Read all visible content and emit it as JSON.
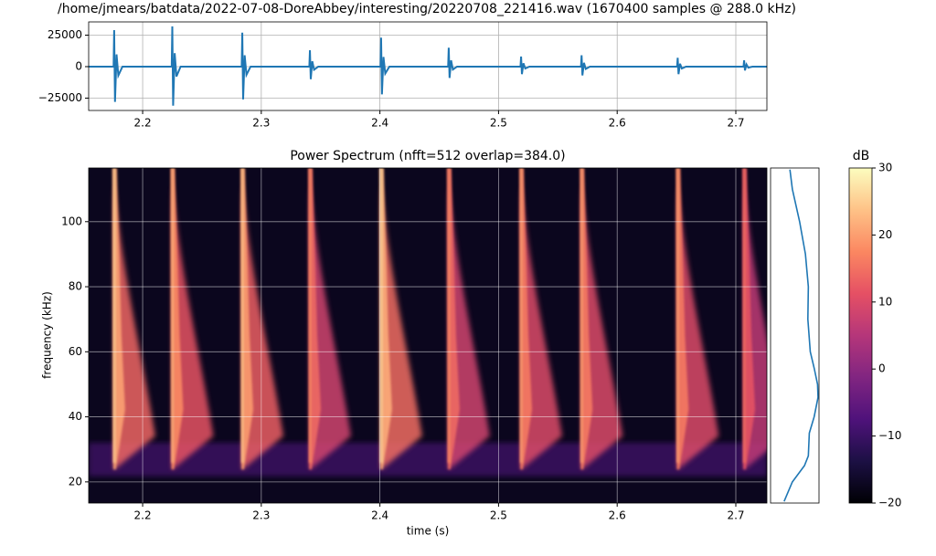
{
  "chart_data": [
    {
      "type": "waveform",
      "title": "/home/jmears/batdata/2022-07-08-DoreAbbey/interesting/20220708_221416.wav (1670400 samples @ 288.0 kHz)",
      "color": "#1f77b4",
      "grid": true,
      "xlim": [
        2.1545,
        2.7262
      ],
      "xticks": [
        2.2,
        2.3,
        2.4,
        2.5,
        2.6,
        2.7
      ],
      "ylim": [
        -34800,
        35500
      ],
      "yticks": [
        {
          "value": -25000,
          "label": "−25000"
        },
        0,
        25000
      ],
      "x": [
        2.1545,
        2.1755,
        2.176,
        2.1767,
        2.178,
        2.1795,
        2.183,
        2.2245,
        2.225,
        2.2257,
        2.227,
        2.2285,
        2.232,
        2.2835,
        2.284,
        2.2847,
        2.286,
        2.2875,
        2.291,
        2.3405,
        2.341,
        2.3417,
        2.343,
        2.3445,
        2.348,
        2.4005,
        2.401,
        2.4017,
        2.403,
        2.4045,
        2.408,
        2.4575,
        2.458,
        2.4587,
        2.46,
        2.4615,
        2.465,
        2.5185,
        2.519,
        2.5197,
        2.521,
        2.5225,
        2.526,
        2.5695,
        2.57,
        2.5707,
        2.572,
        2.5735,
        2.577,
        2.6505,
        2.651,
        2.6517,
        2.653,
        2.6545,
        2.658,
        2.7065,
        2.707,
        2.7077,
        2.709,
        2.7105,
        2.714,
        2.7262
      ],
      "values": [
        0,
        0,
        29000,
        -28000,
        9700,
        -7000,
        0,
        0,
        32000,
        -31000,
        10700,
        -7800,
        0,
        0,
        27000,
        -26000,
        9000,
        -6500,
        0,
        0,
        13000,
        -10000,
        4300,
        -2500,
        0,
        0,
        23000,
        -22000,
        7700,
        -5500,
        0,
        0,
        15000,
        -9000,
        5000,
        -2300,
        0,
        0,
        8000,
        -6000,
        2700,
        -1500,
        0,
        0,
        9000,
        -7000,
        3000,
        -1800,
        0,
        0,
        7000,
        -6000,
        2300,
        -1500,
        0,
        0,
        5000,
        -3000,
        1700,
        -800,
        0,
        0
      ]
    },
    {
      "type": "spectrogram",
      "title": "Power Spectrum (nfft=512 overlap=384.0)",
      "xlabel": "time (s)",
      "ylabel": "frequency (kHz)",
      "grid": true,
      "xlim": [
        2.1545,
        2.7262
      ],
      "xticks": [
        2.2,
        2.3,
        2.4,
        2.5,
        2.6,
        2.7
      ],
      "ylim": [
        13.5,
        116.5
      ],
      "yticks": [
        20,
        40,
        60,
        80,
        100
      ],
      "x": [
        2.176,
        2.225,
        2.284,
        2.341,
        2.401,
        2.458,
        2.519,
        2.57,
        2.651,
        2.707
      ],
      "values": [
        25,
        22,
        24,
        18,
        26,
        18,
        20,
        20,
        20,
        15
      ]
    },
    {
      "type": "profile",
      "color": "#1f77b4",
      "xlim": [
        0,
        1
      ],
      "ylim": [
        13.5,
        116.5
      ],
      "y": [
        14,
        20,
        25,
        28,
        35,
        40,
        46,
        50,
        55,
        60,
        70,
        80,
        90,
        100,
        110,
        116
      ],
      "values": [
        0.28,
        0.45,
        0.7,
        0.78,
        0.8,
        0.9,
        0.98,
        0.97,
        0.9,
        0.82,
        0.77,
        0.78,
        0.72,
        0.6,
        0.45,
        0.4
      ]
    },
    {
      "type": "colorbar",
      "label": "dB",
      "clim": [
        -20,
        30
      ],
      "ticks": [
        {
          "value": -20,
          "label": "−20"
        },
        {
          "value": -10,
          "label": "−10"
        },
        0,
        10,
        20,
        30
      ],
      "colormap": [
        "#000004",
        "#1c1044",
        "#4f127b",
        "#812581",
        "#b5367a",
        "#e55064",
        "#fb8761",
        "#fec287",
        "#fcfdbf"
      ]
    }
  ]
}
